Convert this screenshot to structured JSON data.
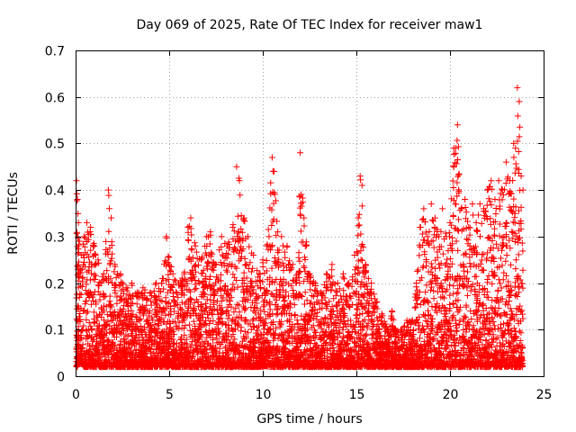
{
  "chart_data": {
    "type": "scatter",
    "title": "Day 069 of 2025, Rate Of TEC Index for receiver maw1",
    "xlabel": "GPS time / hours",
    "ylabel": "ROTI / TECUs",
    "xlim": [
      0,
      25
    ],
    "ylim": [
      0,
      0.7
    ],
    "x_ticks": [
      "0",
      "5",
      "10",
      "15",
      "20",
      "25"
    ],
    "y_ticks": [
      "0",
      "0.1",
      "0.2",
      "0.3",
      "0.4",
      "0.5",
      "0.6",
      "0.7"
    ],
    "grid": true,
    "marker": "+",
    "color": "#ff0000",
    "series": [
      {
        "x": [
          0.05,
          0.1,
          0.15,
          0.2,
          0.3,
          0.45,
          0.6,
          0.8,
          1.0,
          1.2,
          1.5,
          1.75,
          1.9,
          2.1,
          2.4,
          2.7,
          3.0,
          3.3,
          3.6,
          4.0,
          4.3,
          4.6,
          4.85,
          5.2,
          5.5,
          5.8,
          6.0,
          6.15,
          6.4,
          6.7,
          7.0,
          7.2,
          7.5,
          7.8,
          8.1,
          8.4,
          8.6,
          8.75,
          9.0,
          9.2,
          9.5,
          9.8,
          10.0,
          10.2,
          10.5,
          10.6,
          10.8,
          11.0,
          11.3,
          11.6,
          11.9,
          12.0,
          12.2,
          12.5,
          12.8,
          13.1,
          13.4,
          13.7,
          14.0,
          14.3,
          14.6,
          14.9,
          15.1,
          15.2,
          15.3,
          15.5,
          15.8,
          16.1,
          16.4,
          16.7,
          16.9,
          17.1,
          17.4,
          17.7,
          18.0,
          18.2,
          18.4,
          18.6,
          18.8,
          19.0,
          19.2,
          19.4,
          19.6,
          19.8,
          20.0,
          20.2,
          20.4,
          20.6,
          20.8,
          21.0,
          21.2,
          21.4,
          21.6,
          21.8,
          22.0,
          22.2,
          22.4,
          22.6,
          22.8,
          23.0,
          23.2,
          23.4,
          23.5,
          23.6,
          23.7,
          23.8,
          23.9
        ],
        "y": [
          0.42,
          0.38,
          0.33,
          0.29,
          0.26,
          0.3,
          0.33,
          0.32,
          0.28,
          0.25,
          0.22,
          0.4,
          0.34,
          0.24,
          0.22,
          0.19,
          0.2,
          0.18,
          0.19,
          0.18,
          0.2,
          0.2,
          0.3,
          0.22,
          0.2,
          0.22,
          0.32,
          0.34,
          0.28,
          0.25,
          0.3,
          0.31,
          0.24,
          0.3,
          0.28,
          0.32,
          0.45,
          0.42,
          0.34,
          0.3,
          0.26,
          0.22,
          0.25,
          0.28,
          0.47,
          0.44,
          0.31,
          0.3,
          0.28,
          0.24,
          0.22,
          0.48,
          0.34,
          0.22,
          0.2,
          0.18,
          0.22,
          0.24,
          0.2,
          0.22,
          0.2,
          0.26,
          0.34,
          0.43,
          0.41,
          0.24,
          0.2,
          0.16,
          0.13,
          0.1,
          0.14,
          0.1,
          0.1,
          0.12,
          0.12,
          0.2,
          0.32,
          0.36,
          0.3,
          0.37,
          0.34,
          0.3,
          0.36,
          0.3,
          0.33,
          0.49,
          0.54,
          0.36,
          0.38,
          0.32,
          0.37,
          0.33,
          0.37,
          0.36,
          0.4,
          0.42,
          0.38,
          0.42,
          0.4,
          0.46,
          0.42,
          0.5,
          0.49,
          0.62,
          0.59,
          0.43,
          0.4
        ],
        "y_floor": [
          0.02,
          0.02,
          0.03,
          0.03,
          0.03,
          0.02,
          0.02,
          0.02,
          0.02,
          0.02,
          0.02,
          0.02,
          0.02,
          0.02,
          0.02,
          0.02,
          0.02,
          0.02,
          0.02,
          0.02,
          0.02,
          0.02,
          0.02,
          0.02,
          0.02,
          0.02,
          0.02,
          0.02,
          0.02,
          0.02,
          0.02,
          0.02,
          0.02,
          0.02,
          0.02,
          0.02,
          0.02,
          0.02,
          0.02,
          0.02,
          0.02,
          0.02,
          0.02,
          0.02,
          0.02,
          0.02,
          0.02,
          0.02,
          0.02,
          0.02,
          0.02,
          0.02,
          0.02,
          0.02,
          0.02,
          0.02,
          0.02,
          0.02,
          0.02,
          0.02,
          0.02,
          0.02,
          0.02,
          0.02,
          0.02,
          0.02,
          0.02,
          0.02,
          0.02,
          0.02,
          0.02,
          0.02,
          0.02,
          0.02,
          0.02,
          0.02,
          0.02,
          0.02,
          0.02,
          0.02,
          0.02,
          0.02,
          0.02,
          0.02,
          0.02,
          0.02,
          0.02,
          0.02,
          0.02,
          0.02,
          0.02,
          0.02,
          0.02,
          0.02,
          0.02,
          0.02,
          0.02,
          0.02,
          0.02,
          0.02,
          0.02,
          0.02,
          0.02,
          0.02,
          0.02,
          0.02,
          0.02
        ]
      }
    ]
  }
}
